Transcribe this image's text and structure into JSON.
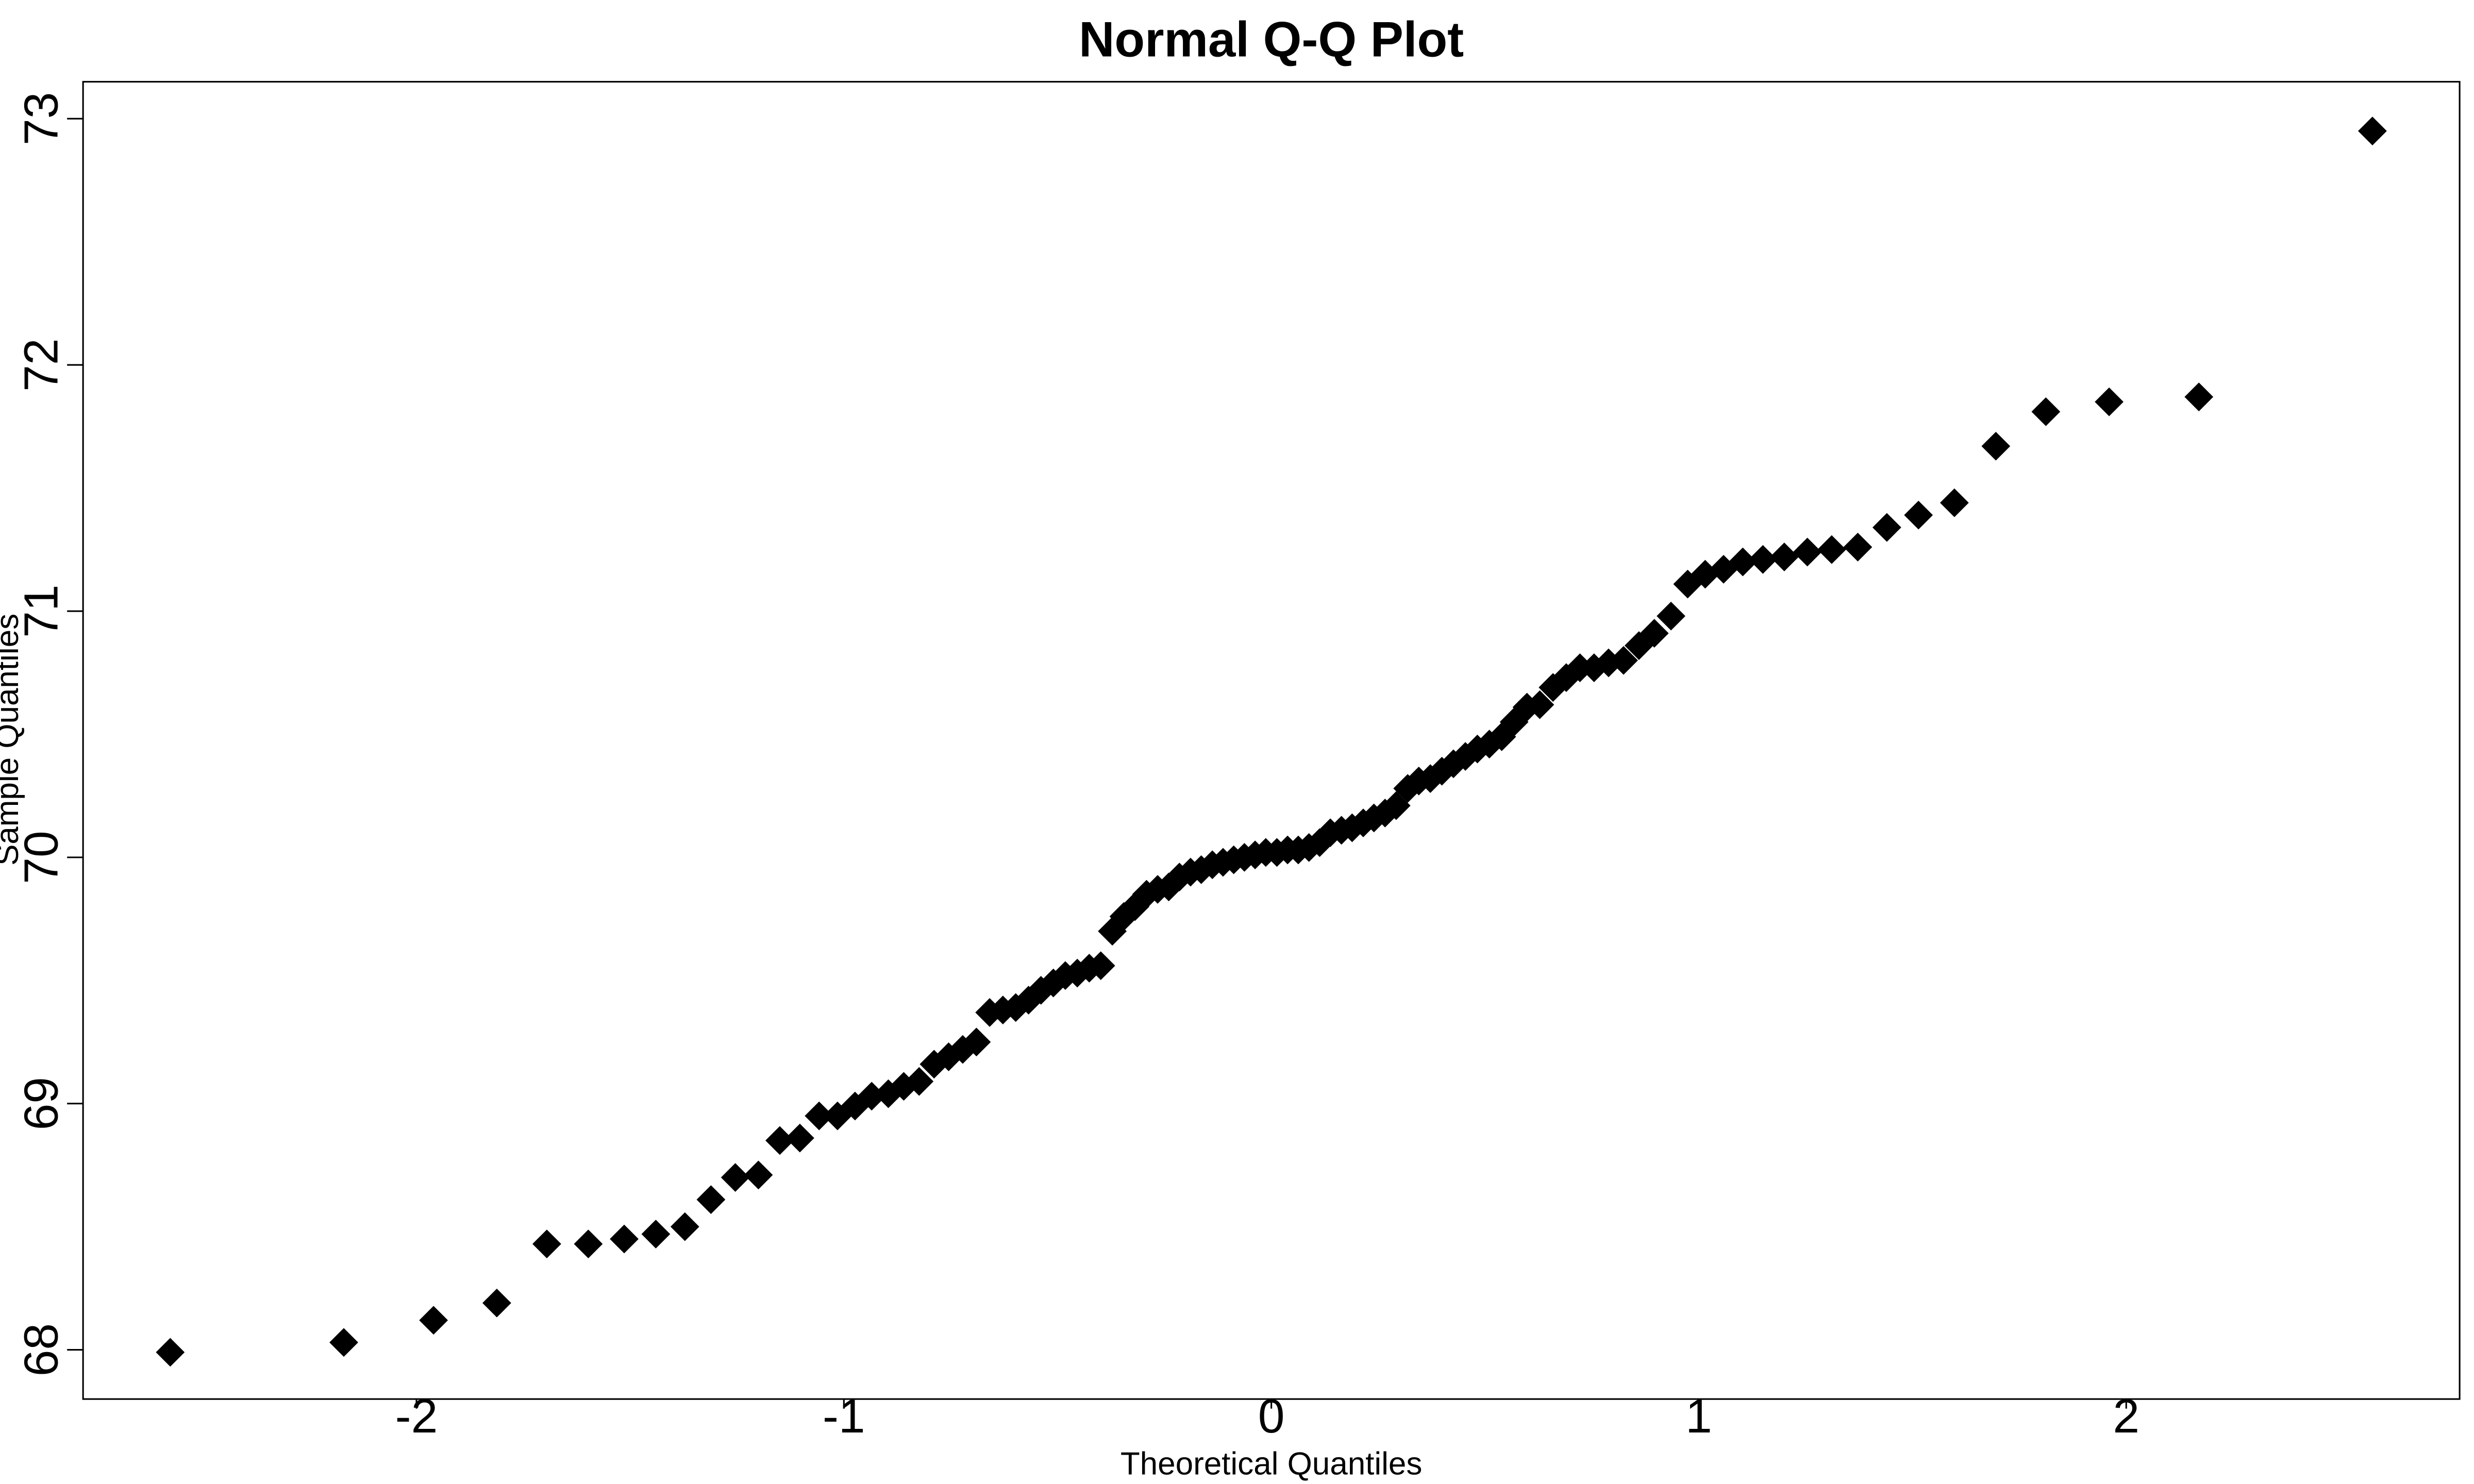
{
  "chart_data": {
    "type": "scatter",
    "title": "Normal Q-Q Plot",
    "x_label": "Theoretical Quantiles",
    "y_label": "Sample Quantiles",
    "x": [
      -2.576,
      -2.17,
      -1.96,
      -1.812,
      -1.695,
      -1.598,
      -1.514,
      -1.44,
      -1.372,
      -1.311,
      -1.254,
      -1.2,
      -1.15,
      -1.103,
      -1.058,
      -1.015,
      -0.974,
      -0.935,
      -0.896,
      -0.86,
      -0.824,
      -0.789,
      -0.755,
      -0.722,
      -0.69,
      -0.659,
      -0.628,
      -0.598,
      -0.568,
      -0.539,
      -0.51,
      -0.482,
      -0.454,
      -0.426,
      -0.399,
      -0.372,
      -0.345,
      -0.319,
      -0.292,
      -0.266,
      -0.24,
      -0.215,
      -0.189,
      -0.164,
      -0.138,
      -0.113,
      -0.088,
      -0.063,
      -0.038,
      -0.013,
      0.013,
      0.038,
      0.063,
      0.088,
      0.113,
      0.138,
      0.164,
      0.189,
      0.215,
      0.24,
      0.266,
      0.292,
      0.319,
      0.345,
      0.372,
      0.399,
      0.426,
      0.454,
      0.482,
      0.51,
      0.539,
      0.568,
      0.598,
      0.628,
      0.659,
      0.69,
      0.722,
      0.755,
      0.789,
      0.824,
      0.86,
      0.896,
      0.935,
      0.974,
      1.015,
      1.058,
      1.103,
      1.15,
      1.2,
      1.254,
      1.311,
      1.372,
      1.44,
      1.514,
      1.598,
      1.695,
      1.812,
      1.96,
      2.17,
      2.576
    ],
    "values": [
      67.99,
      68.03,
      68.12,
      68.19,
      68.43,
      68.43,
      68.45,
      68.47,
      68.5,
      68.61,
      68.7,
      68.71,
      68.85,
      68.86,
      68.95,
      68.95,
      68.99,
      69.03,
      69.04,
      69.07,
      69.09,
      69.16,
      69.19,
      69.22,
      69.25,
      69.37,
      69.38,
      69.39,
      69.42,
      69.46,
      69.49,
      69.52,
      69.53,
      69.55,
      69.56,
      69.7,
      69.76,
      69.8,
      69.85,
      69.87,
      69.88,
      69.92,
      69.94,
      69.95,
      69.97,
      69.98,
      69.99,
      70.0,
      70.01,
      70.02,
      70.02,
      70.03,
      70.03,
      70.04,
      70.06,
      70.1,
      70.11,
      70.12,
      70.14,
      70.16,
      70.18,
      70.21,
      70.28,
      70.31,
      70.32,
      70.35,
      70.38,
      70.41,
      70.44,
      70.46,
      70.49,
      70.55,
      70.61,
      70.62,
      70.69,
      70.73,
      70.77,
      70.77,
      70.79,
      70.8,
      70.86,
      70.91,
      70.98,
      71.11,
      71.15,
      71.17,
      71.2,
      71.21,
      71.22,
      71.24,
      71.25,
      71.26,
      71.34,
      71.39,
      71.44,
      71.67,
      71.81,
      71.85,
      71.87,
      72.95
    ],
    "color": "#000000",
    "xlim": [
      -2.78,
      2.78
    ],
    "ylim": [
      67.8,
      73.15
    ],
    "xticks": [
      -2,
      -1,
      0,
      1,
      2
    ],
    "yticks": [
      68,
      69,
      70,
      71,
      72,
      73
    ]
  }
}
